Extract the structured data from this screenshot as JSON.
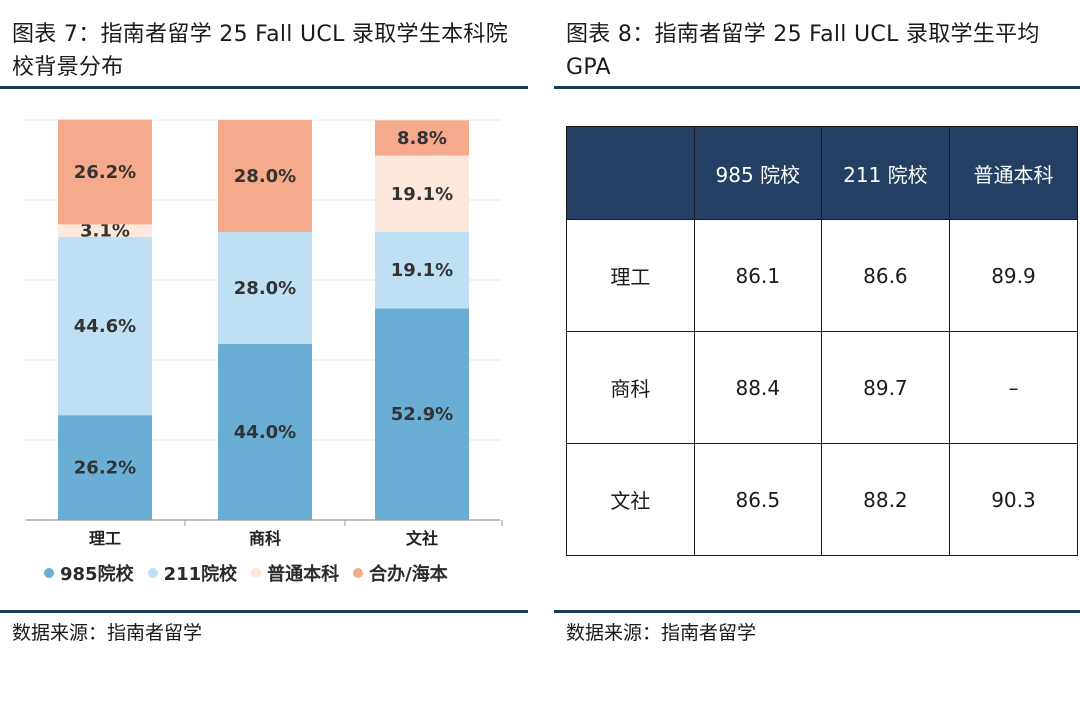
{
  "left": {
    "title": "图表 7：指南者留学 25 Fall UCL 录取学生本科院校背景分布",
    "source": "数据来源：指南者留学"
  },
  "right": {
    "title": "图表 8：指南者留学 25 Fall UCL 录取学生平均 GPA",
    "source": "数据来源：指南者留学"
  },
  "colors": {
    "985": "#6aaed6",
    "211": "#bfdff2",
    "normal": "#fde8de",
    "joint": "#f5ab8b",
    "rule": "#1f3a5f",
    "table_header": "#243f63"
  },
  "chart_data": [
    {
      "type": "bar",
      "stacked": true,
      "categories": [
        "理工",
        "商科",
        "文社"
      ],
      "series": [
        {
          "name": "985院校",
          "values": [
            26.2,
            44.0,
            52.9
          ],
          "labels": [
            "26.2%",
            "44.0%",
            "52.9%"
          ]
        },
        {
          "name": "211院校",
          "values": [
            44.6,
            28.0,
            19.1
          ],
          "labels": [
            "44.6%",
            "28.0%",
            "19.1%"
          ]
        },
        {
          "name": "普通本科",
          "values": [
            3.1,
            0,
            19.1
          ],
          "labels": [
            "3.1%",
            "",
            "19.1%"
          ]
        },
        {
          "name": "合办/海本",
          "values": [
            26.2,
            28.0,
            8.8
          ],
          "labels": [
            "26.2%",
            "28.0%",
            "8.8%"
          ]
        }
      ],
      "ylim": [
        0,
        100
      ],
      "grid": true,
      "legend": "bottom"
    },
    {
      "type": "table",
      "columns": [
        "",
        "985 院校",
        "211 院校",
        "普通本科"
      ],
      "rows": [
        [
          "理工",
          "86.1",
          "86.6",
          "89.9"
        ],
        [
          "商科",
          "88.4",
          "89.7",
          "–"
        ],
        [
          "文社",
          "86.5",
          "88.2",
          "90.3"
        ]
      ]
    }
  ]
}
